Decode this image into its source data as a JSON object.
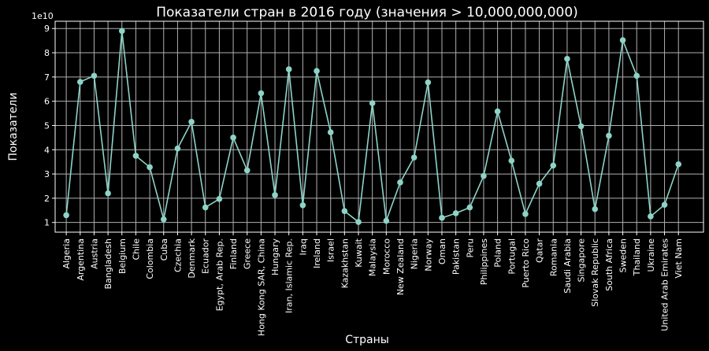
{
  "chart_data": {
    "type": "line",
    "title": "Показатели стран в 2016 году (значения > 10,000,000,000)",
    "xlabel": "Страны",
    "ylabel": "Показатели",
    "y_offset_label": "1e10",
    "ylim": [
      0.6,
      9.3
    ],
    "y_ticks": [
      "1",
      "2",
      "3",
      "4",
      "5",
      "6",
      "7",
      "8",
      "9"
    ],
    "grid": true,
    "line_color": "#8dd3c7",
    "background": "#000000",
    "categories": [
      "Algeria",
      "Argentina",
      "Austria",
      "Bangladesh",
      "Belgium",
      "Chile",
      "Colombia",
      "Cuba",
      "Czechia",
      "Denmark",
      "Ecuador",
      "Egypt, Arab Rep.",
      "Finland",
      "Greece",
      "Hong Kong SAR, China",
      "Hungary",
      "Iran, Islamic Rep.",
      "Iraq",
      "Ireland",
      "Israel",
      "Kazakhstan",
      "Kuwait",
      "Malaysia",
      "Morocco",
      "New Zealand",
      "Nigeria",
      "Norway",
      "Oman",
      "Pakistan",
      "Peru",
      "Philippines",
      "Poland",
      "Portugal",
      "Puerto Rico",
      "Qatar",
      "Romania",
      "Saudi Arabia",
      "Singapore",
      "Slovak Republic",
      "South Africa",
      "Sweden",
      "Thailand",
      "Ukraine",
      "United Arab Emirates",
      "Viet Nam"
    ],
    "values": [
      1.3,
      6.8,
      7.05,
      2.2,
      8.9,
      3.75,
      3.28,
      1.13,
      4.05,
      5.15,
      1.62,
      1.97,
      4.5,
      3.15,
      6.33,
      2.13,
      7.32,
      1.71,
      7.25,
      4.72,
      1.47,
      1.02,
      5.92,
      1.07,
      2.65,
      3.68,
      6.78,
      1.19,
      1.38,
      1.62,
      2.92,
      5.58,
      3.55,
      1.35,
      2.6,
      3.35,
      7.75,
      4.97,
      1.55,
      4.58,
      8.52,
      7.05,
      1.25,
      1.73,
      3.4
    ]
  }
}
